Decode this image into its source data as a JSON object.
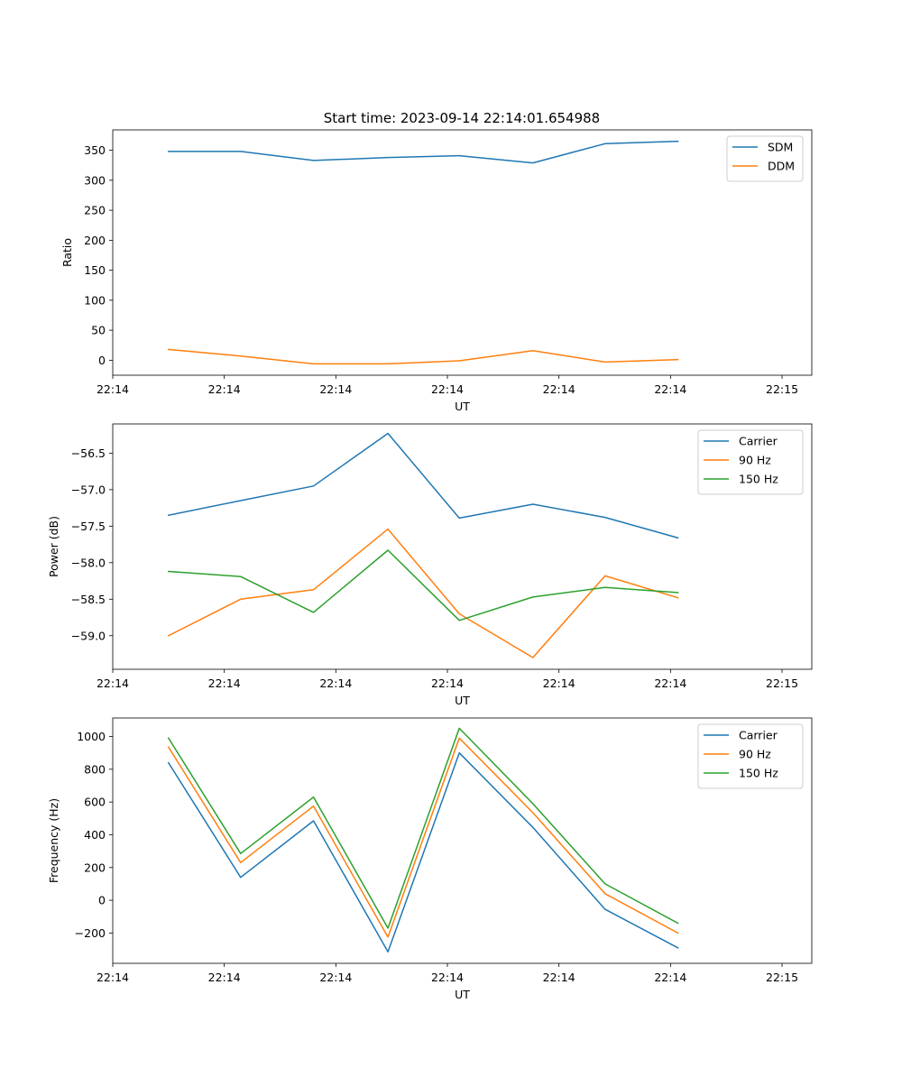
{
  "figure_title": "Start time: 2023-09-14 22:14:01.654988",
  "colors": {
    "blue": "#1f77b4",
    "orange": "#ff7f0e",
    "green": "#2ca02c"
  },
  "chart_data": [
    {
      "type": "line",
      "xlabel": "UT",
      "ylabel": "Ratio",
      "xlim": [
        0,
        9.4
      ],
      "ylim": [
        -25,
        384
      ],
      "x_ticks": [
        {
          "pos": 0,
          "label": "22:14"
        },
        {
          "pos": 1.5,
          "label": "22:14"
        },
        {
          "pos": 3,
          "label": "22:14"
        },
        {
          "pos": 4.5,
          "label": "22:14"
        },
        {
          "pos": 6,
          "label": "22:14"
        },
        {
          "pos": 7.5,
          "label": "22:14"
        },
        {
          "pos": 9,
          "label": "22:15"
        }
      ],
      "y_ticks": [
        0,
        50,
        100,
        150,
        200,
        250,
        300,
        350
      ],
      "x": [
        0.75,
        1.72,
        2.7,
        3.7,
        4.66,
        5.65,
        6.62,
        7.6
      ],
      "legend_position": "top-right",
      "series": [
        {
          "name": "SDM",
          "color": "#1f77b4",
          "values": [
            348,
            348,
            333,
            338,
            341,
            329,
            361,
            365
          ]
        },
        {
          "name": "DDM",
          "color": "#ff7f0e",
          "values": [
            18,
            7,
            -6,
            -6,
            -1,
            16,
            -3,
            1
          ]
        }
      ]
    },
    {
      "type": "line",
      "xlabel": "UT",
      "ylabel": "Power (dB)",
      "xlim": [
        0,
        9.4
      ],
      "ylim": [
        -59.46,
        -56.1
      ],
      "x_ticks": [
        {
          "pos": 0,
          "label": "22:14"
        },
        {
          "pos": 1.5,
          "label": "22:14"
        },
        {
          "pos": 3,
          "label": "22:14"
        },
        {
          "pos": 4.5,
          "label": "22:14"
        },
        {
          "pos": 6,
          "label": "22:14"
        },
        {
          "pos": 7.5,
          "label": "22:14"
        },
        {
          "pos": 9,
          "label": "22:15"
        }
      ],
      "y_ticks": [
        -59.0,
        -58.5,
        -58.0,
        -57.5,
        -57.0,
        -56.5
      ],
      "y_tick_labels": [
        "−59.0",
        "−58.5",
        "−58.0",
        "−57.5",
        "−57.0",
        "−56.5"
      ],
      "x": [
        0.75,
        1.72,
        2.7,
        3.7,
        4.66,
        5.65,
        6.62,
        7.6
      ],
      "legend_position": "top-right",
      "series": [
        {
          "name": "Carrier",
          "color": "#1f77b4",
          "values": [
            -57.35,
            -57.15,
            -56.95,
            -56.23,
            -57.39,
            -57.2,
            -57.38,
            -57.66
          ]
        },
        {
          "name": "90 Hz",
          "color": "#ff7f0e",
          "values": [
            -59.0,
            -58.5,
            -58.37,
            -57.54,
            -58.7,
            -59.3,
            -58.18,
            -58.48
          ]
        },
        {
          "name": "150 Hz",
          "color": "#2ca02c",
          "values": [
            -58.12,
            -58.19,
            -58.68,
            -57.83,
            -58.79,
            -58.47,
            -58.34,
            -58.41
          ]
        }
      ]
    },
    {
      "type": "line",
      "xlabel": "UT",
      "ylabel": "Frequency (Hz)",
      "xlim": [
        0,
        9.4
      ],
      "ylim": [
        -385,
        1113
      ],
      "x_ticks": [
        {
          "pos": 0,
          "label": "22:14"
        },
        {
          "pos": 1.5,
          "label": "22:14"
        },
        {
          "pos": 3,
          "label": "22:14"
        },
        {
          "pos": 4.5,
          "label": "22:14"
        },
        {
          "pos": 6,
          "label": "22:14"
        },
        {
          "pos": 7.5,
          "label": "22:14"
        },
        {
          "pos": 9,
          "label": "22:15"
        }
      ],
      "y_ticks": [
        -200,
        0,
        200,
        400,
        600,
        800,
        1000
      ],
      "y_tick_labels": [
        "−200",
        "0",
        "200",
        "400",
        "600",
        "800",
        "1000"
      ],
      "x": [
        0.75,
        1.72,
        2.7,
        3.7,
        4.66,
        5.65,
        6.62,
        7.6
      ],
      "legend_position": "top-right",
      "series": [
        {
          "name": "Carrier",
          "color": "#1f77b4",
          "values": [
            840,
            140,
            485,
            -315,
            900,
            445,
            -55,
            -290
          ]
        },
        {
          "name": "90 Hz",
          "color": "#ff7f0e",
          "values": [
            935,
            230,
            575,
            -225,
            990,
            535,
            40,
            -200
          ]
        },
        {
          "name": "150 Hz",
          "color": "#2ca02c",
          "values": [
            990,
            285,
            630,
            -170,
            1050,
            590,
            100,
            -140
          ]
        }
      ]
    }
  ]
}
